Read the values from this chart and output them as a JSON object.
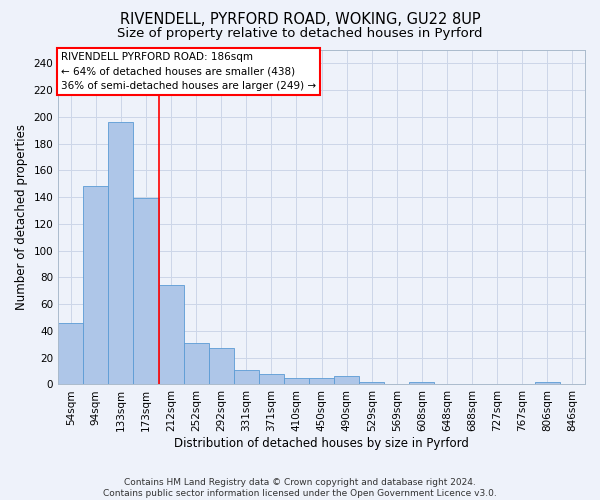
{
  "title_line1": "RIVENDELL, PYRFORD ROAD, WOKING, GU22 8UP",
  "title_line2": "Size of property relative to detached houses in Pyrford",
  "xlabel": "Distribution of detached houses by size in Pyrford",
  "ylabel": "Number of detached properties",
  "categories": [
    "54sqm",
    "94sqm",
    "133sqm",
    "173sqm",
    "212sqm",
    "252sqm",
    "292sqm",
    "331sqm",
    "371sqm",
    "410sqm",
    "450sqm",
    "490sqm",
    "529sqm",
    "569sqm",
    "608sqm",
    "648sqm",
    "688sqm",
    "727sqm",
    "767sqm",
    "806sqm",
    "846sqm"
  ],
  "values": [
    46,
    148,
    196,
    139,
    74,
    31,
    27,
    11,
    8,
    5,
    5,
    6,
    2,
    0,
    2,
    0,
    0,
    0,
    0,
    2,
    0
  ],
  "bar_color": "#aec6e8",
  "bar_edge_color": "#5b9bd5",
  "vline_x": 3.5,
  "vline_color": "red",
  "annotation_box_text": "RIVENDELL PYRFORD ROAD: 186sqm\n← 64% of detached houses are smaller (438)\n36% of semi-detached houses are larger (249) →",
  "ylim": [
    0,
    250
  ],
  "yticks": [
    0,
    20,
    40,
    60,
    80,
    100,
    120,
    140,
    160,
    180,
    200,
    220,
    240
  ],
  "grid_color": "#ccd6e8",
  "background_color": "#eef2fa",
  "footer_text": "Contains HM Land Registry data © Crown copyright and database right 2024.\nContains public sector information licensed under the Open Government Licence v3.0.",
  "title_fontsize": 10.5,
  "subtitle_fontsize": 9.5,
  "axis_label_fontsize": 8.5,
  "tick_fontsize": 7.5,
  "annotation_fontsize": 7.5,
  "footer_fontsize": 6.5
}
